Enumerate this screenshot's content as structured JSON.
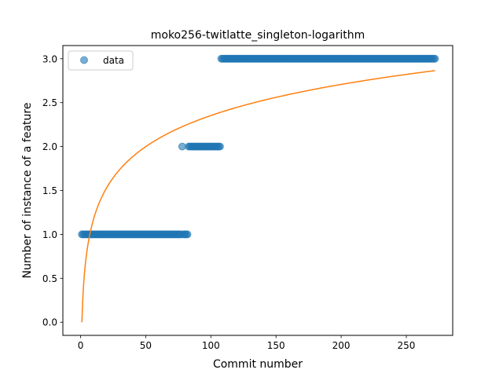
{
  "chart_data": {
    "type": "scatter",
    "title": "moko256-twitlatte_singleton-logarithm",
    "xlabel": "Commit number",
    "ylabel": "Number of instance of a feature",
    "xlim": [
      -13.6,
      285.6
    ],
    "ylim": [
      -0.15,
      3.15
    ],
    "xticks": [
      0,
      50,
      100,
      150,
      200,
      250
    ],
    "xtick_labels": [
      "0",
      "50",
      "100",
      "150",
      "200",
      "250"
    ],
    "yticks": [
      0.0,
      0.5,
      1.0,
      1.5,
      2.0,
      2.5,
      3.0
    ],
    "ytick_labels": [
      "0.0",
      "0.5",
      "1.0",
      "1.5",
      "2.0",
      "2.5",
      "3.0"
    ],
    "grid": false,
    "legend": {
      "position": "upper-left",
      "entries": [
        "data"
      ]
    },
    "series": [
      {
        "name": "data",
        "kind": "scatter",
        "color": "#1f77b4",
        "segments": [
          {
            "x_from": 1,
            "x_to": 77,
            "y": 1.0
          },
          {
            "x_from": 78,
            "x_to": 78,
            "y": 2.0
          },
          {
            "x_from": 79,
            "x_to": 82,
            "y": 1.0
          },
          {
            "x_from": 83,
            "x_to": 107,
            "y": 2.0
          },
          {
            "x_from": 108,
            "x_to": 272,
            "y": 3.0
          }
        ]
      },
      {
        "kind": "line",
        "color": "#ff7f0e",
        "model": "logarithmic",
        "x_range": [
          1,
          272
        ],
        "coefficients": {
          "a": 0.511,
          "b": 0.0
        }
      }
    ]
  }
}
